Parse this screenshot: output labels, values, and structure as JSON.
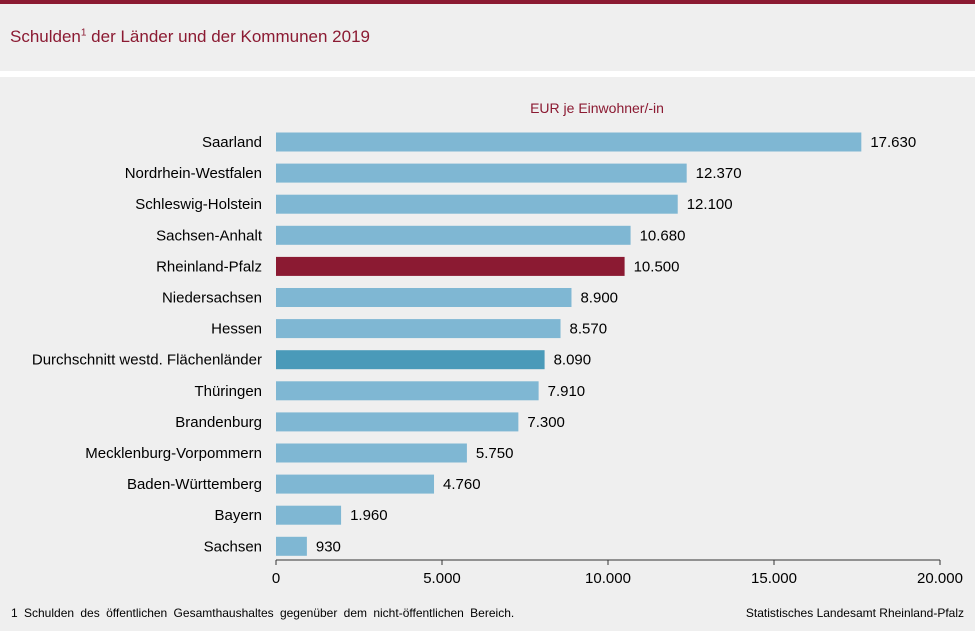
{
  "header": {
    "title": "Schulden",
    "title_sup": "1",
    "title_rest": " der Länder und der Kommunen 2019"
  },
  "colors": {
    "accent": "#8b1a32",
    "bar_default": "#7fb7d3",
    "bar_average": "#4a9ab9",
    "bar_highlight": "#8b1a32"
  },
  "chart_data": {
    "type": "bar",
    "orientation": "horizontal",
    "unit_label": "EUR je Einwohner/-in",
    "categories": [
      "Saarland",
      "Nordrhein-Westfalen",
      "Schleswig-Holstein",
      "Sachsen-Anhalt",
      "Rheinland-Pfalz",
      "Niedersachsen",
      "Hessen",
      "Durchschnitt westd. Flächenländer",
      "Thüringen",
      "Brandenburg",
      "Mecklenburg-Vorpommern",
      "Baden-Württemberg",
      "Bayern",
      "Sachsen"
    ],
    "values": [
      17630,
      12370,
      12100,
      10680,
      10500,
      8900,
      8570,
      8090,
      7910,
      7300,
      5750,
      4760,
      1960,
      930
    ],
    "value_labels": [
      "17.630",
      "12.370",
      "12.100",
      "10.680",
      "10.500",
      "8.900",
      "8.570",
      "8.090",
      "7.910",
      "7.300",
      "5.750",
      "4.760",
      "1.960",
      "930"
    ],
    "highlight": [
      "normal",
      "normal",
      "normal",
      "normal",
      "highlight",
      "normal",
      "normal",
      "average",
      "normal",
      "normal",
      "normal",
      "normal",
      "normal",
      "normal"
    ],
    "xlim": [
      0,
      20000
    ],
    "xticks": [
      0,
      5000,
      10000,
      15000,
      20000
    ],
    "xtick_labels": [
      "0",
      "5.000",
      "10.000",
      "15.000",
      "20.000"
    ],
    "grid": false,
    "legend": "none"
  },
  "footer": {
    "footnote": "1 Schulden des öffentlichen Gesamthaushaltes gegenüber dem nicht-öffentlichen Bereich.",
    "source": "Statistisches Landesamt Rheinland-Pfalz"
  }
}
